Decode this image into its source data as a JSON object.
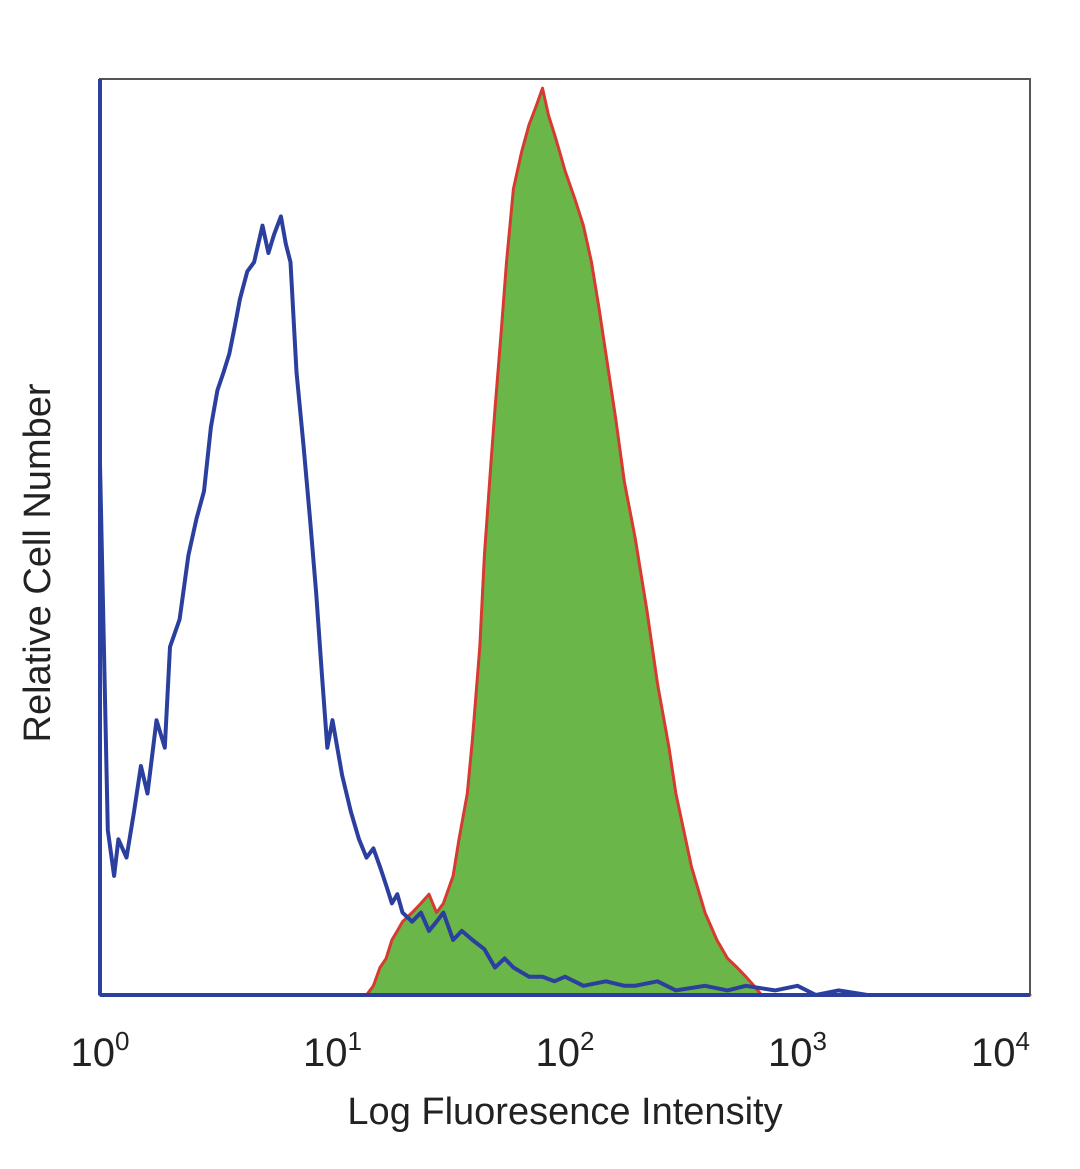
{
  "chart_data": {
    "type": "area",
    "xlabel": "Log Fluoresence Intensity",
    "ylabel": "Relative Cell Number",
    "xscale": "log",
    "xlim": [
      1,
      10000
    ],
    "ylim": [
      0,
      100
    ],
    "x_ticks": [
      {
        "value": 1,
        "base": "10",
        "exp": "0"
      },
      {
        "value": 10,
        "base": "10",
        "exp": "1"
      },
      {
        "value": 100,
        "base": "10",
        "exp": "2"
      },
      {
        "value": 1000,
        "base": "10",
        "exp": "3"
      },
      {
        "value": 10000,
        "base": "10",
        "exp": "4"
      }
    ],
    "grid": false,
    "legend": "none",
    "series": [
      {
        "style": "outline",
        "color": "#2b3f9e",
        "x": [
          1,
          1.08,
          1.15,
          1.2,
          1.3,
          1.4,
          1.5,
          1.6,
          1.75,
          1.9,
          2.0,
          2.2,
          2.4,
          2.6,
          2.8,
          3.0,
          3.2,
          3.4,
          3.6,
          3.8,
          4.0,
          4.3,
          4.6,
          5.0,
          5.3,
          5.6,
          6.0,
          6.3,
          6.6,
          7.0,
          7.5,
          8.0,
          8.5,
          9.0,
          9.5,
          10,
          11,
          12,
          13,
          14,
          15,
          16,
          17,
          18,
          19,
          20,
          22,
          24,
          26,
          28,
          30,
          33,
          36,
          40,
          45,
          50,
          55,
          60,
          70,
          80,
          90,
          100,
          120,
          150,
          180,
          200,
          250,
          300,
          400,
          500,
          600,
          800,
          1000,
          1200,
          1500,
          2000,
          5000,
          10000
        ],
        "y": [
          58,
          18,
          13,
          17,
          15,
          20,
          25,
          22,
          30,
          27,
          38,
          41,
          48,
          52,
          55,
          62,
          66,
          68,
          70,
          73,
          76,
          79,
          80,
          84,
          81,
          83,
          85,
          82,
          80,
          68,
          60,
          52,
          44,
          35,
          27,
          30,
          24,
          20,
          17,
          15,
          16,
          14,
          12,
          10,
          11,
          9,
          8,
          9,
          7,
          8,
          9,
          6,
          7,
          6,
          5,
          3,
          4,
          3,
          2,
          2,
          1.5,
          2,
          1,
          1.5,
          1,
          1,
          1.5,
          0.5,
          1,
          0.5,
          1,
          0.5,
          1,
          0,
          0.5,
          0,
          0,
          0
        ]
      },
      {
        "style": "filled",
        "color": "#6ab648",
        "edge_color": "#d63a30",
        "x": [
          1,
          14,
          15,
          16,
          17,
          18,
          19,
          20,
          22,
          24,
          26,
          28,
          30,
          33,
          35,
          38,
          40,
          43,
          45,
          48,
          50,
          53,
          56,
          60,
          65,
          70,
          75,
          80,
          85,
          90,
          95,
          100,
          110,
          120,
          130,
          140,
          150,
          165,
          180,
          200,
          225,
          250,
          280,
          300,
          350,
          400,
          450,
          500,
          550,
          600,
          650,
          700,
          10000
        ],
        "y": [
          0,
          0,
          1,
          3,
          4,
          6,
          7,
          8,
          9,
          10,
          11,
          9,
          10,
          13,
          17,
          22,
          28,
          38,
          48,
          58,
          64,
          72,
          80,
          88,
          92,
          95,
          97,
          99,
          96,
          94,
          92,
          90,
          87,
          84,
          80,
          75,
          70,
          63,
          56,
          50,
          42,
          34,
          27,
          22,
          14,
          9,
          6,
          4,
          3,
          2,
          1,
          0,
          0
        ]
      }
    ]
  }
}
